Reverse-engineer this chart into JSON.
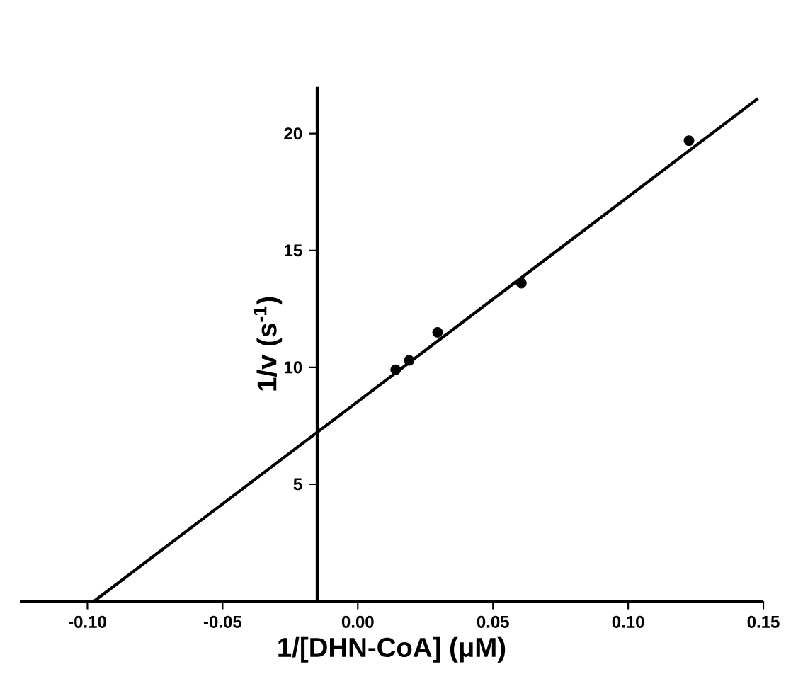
{
  "chart_data": {
    "type": "scatter",
    "xlabel": "1/[DHN-CoA] (μM)",
    "ylabel": "1/v (s$^{-1}$)",
    "xlim": [
      -0.125,
      0.15
    ],
    "ylim": [
      0,
      22
    ],
    "xticks": [
      {
        "value": -0.1,
        "label": "-0.10"
      },
      {
        "value": -0.05,
        "label": "-0.05"
      },
      {
        "value": 0,
        "label": "0.00"
      },
      {
        "value": 0.05,
        "label": "0.05"
      },
      {
        "value": 0.1,
        "label": "0.10"
      },
      {
        "value": 0.15,
        "label": "0.15"
      }
    ],
    "yticks": [
      5,
      10,
      15,
      20
    ],
    "grid": false,
    "series": [
      {
        "color": "#000000",
        "marker": "circle",
        "x": [
          0.014,
          0.019,
          0.0295,
          0.0605,
          0.1225
        ],
        "values": [
          9.9,
          10.3,
          11.5,
          13.6,
          19.7
        ]
      },
      {
        "type": "line",
        "color": "#000000",
        "marker": "none",
        "line_style": "solid",
        "x": [
          -0.0975,
          0.148
        ],
        "values": [
          0,
          21.5
        ]
      }
    ]
  }
}
